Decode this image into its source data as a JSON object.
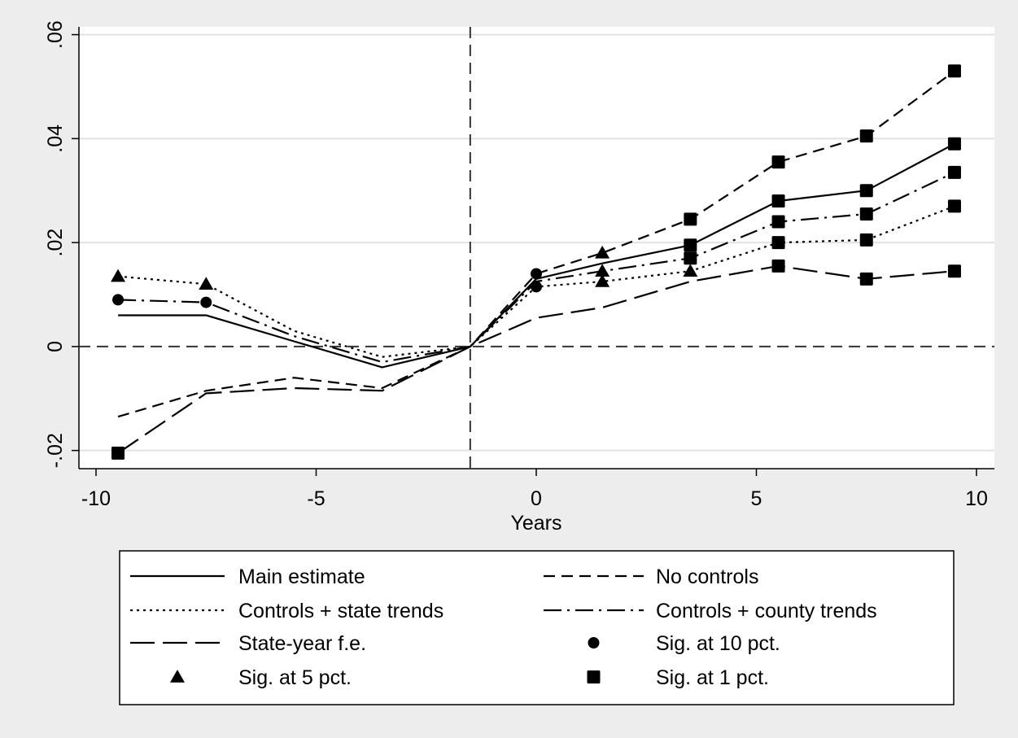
{
  "chart_data": {
    "type": "line",
    "title": "",
    "xlabel": "Years",
    "ylabel": "",
    "xlim": [
      -10.4,
      10.4
    ],
    "ylim": [
      -0.0235,
      0.0615
    ],
    "x_ticks": [
      -10,
      -5,
      0,
      5,
      10
    ],
    "x_tick_labels": [
      "-10",
      "-5",
      "0",
      "5",
      "10"
    ],
    "y_ticks": [
      -0.02,
      0,
      0.02,
      0.04,
      0.06
    ],
    "y_tick_labels": [
      "-.02",
      "0",
      ".02",
      ".04",
      ".06"
    ],
    "grid": "horizontal",
    "reference_lines": {
      "x": -1.5,
      "y": 0
    },
    "legend_placement": "bottom",
    "x": [
      -9.5,
      -7.5,
      -5.5,
      -3.5,
      -1.5,
      0,
      1.5,
      3.5,
      5.5,
      7.5,
      9.5
    ],
    "series": [
      {
        "name": "Main estimate",
        "style": "solid",
        "values": [
          0.006,
          0.006,
          0.001,
          -0.004,
          0.0,
          0.013,
          0.016,
          0.0195,
          0.028,
          0.03,
          0.039
        ],
        "markers": [
          "none",
          "none",
          "none",
          "none",
          "none",
          "none",
          "none",
          "square",
          "square",
          "square",
          "square"
        ]
      },
      {
        "name": "No controls",
        "style": "dash",
        "values": [
          -0.0135,
          -0.0085,
          -0.006,
          -0.008,
          0.0,
          0.014,
          0.018,
          0.0245,
          0.0355,
          0.0405,
          0.053
        ],
        "markers": [
          "none",
          "none",
          "none",
          "none",
          "none",
          "circle",
          "triangle",
          "square",
          "square",
          "square",
          "square"
        ]
      },
      {
        "name": "Controls + state trends",
        "style": "dot",
        "values": [
          0.0135,
          0.012,
          0.003,
          -0.002,
          0.0,
          0.0115,
          0.0125,
          0.0145,
          0.02,
          0.0205,
          0.027
        ],
        "markers": [
          "triangle",
          "triangle",
          "none",
          "none",
          "none",
          "circle",
          "triangle",
          "triangle",
          "square",
          "square",
          "square"
        ]
      },
      {
        "name": "Controls + county trends",
        "style": "dashdot",
        "values": [
          0.009,
          0.0085,
          0.002,
          -0.003,
          0.0,
          0.0125,
          0.0145,
          0.017,
          0.024,
          0.0255,
          0.0335
        ],
        "markers": [
          "circle",
          "circle",
          "none",
          "none",
          "none",
          "none",
          "triangle",
          "square",
          "square",
          "square",
          "square"
        ]
      },
      {
        "name": "State-year f.e.",
        "style": "longdash",
        "values": [
          -0.0205,
          -0.009,
          -0.008,
          -0.0085,
          0.0,
          0.0055,
          0.0075,
          0.0125,
          0.0155,
          0.013,
          0.0145
        ],
        "markers": [
          "square",
          "none",
          "none",
          "none",
          "none",
          "none",
          "none",
          "none",
          "square",
          "square",
          "square"
        ]
      }
    ],
    "legend": [
      {
        "label": "Main estimate",
        "kind": "line",
        "style": "solid"
      },
      {
        "label": "No controls",
        "kind": "line",
        "style": "dash"
      },
      {
        "label": "Controls + state trends",
        "kind": "line",
        "style": "dot"
      },
      {
        "label": "Controls + county trends",
        "kind": "line",
        "style": "dashdot"
      },
      {
        "label": "State-year f.e.",
        "kind": "line",
        "style": "longdash"
      },
      {
        "label": "Sig. at 10 pct.",
        "kind": "marker",
        "style": "circle"
      },
      {
        "label": "Sig. at 5 pct.",
        "kind": "marker",
        "style": "triangle"
      },
      {
        "label": "Sig. at 1 pct.",
        "kind": "marker",
        "style": "square"
      }
    ],
    "colors": {
      "background": "#ededed",
      "plot": "#ffffff",
      "grid": "#e1e1e1",
      "ink": "#000000"
    }
  }
}
